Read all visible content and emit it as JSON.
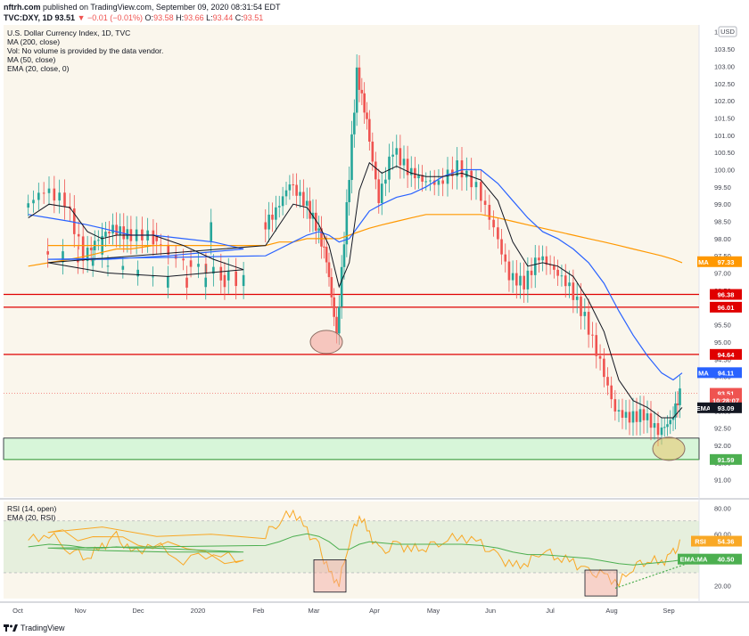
{
  "header": {
    "author": "nftrh.com",
    "published_text": "published on TradingView.com, September 09, 2020 08:31:54 EDT",
    "symbol": "TVC:DXY, 1D",
    "last": "93.51",
    "change": "▼ −0.01 (−0.01%)",
    "o_label": "O:",
    "o_value": "93.58",
    "h_label": "H:",
    "h_value": "93.66",
    "l_label": "L:",
    "l_value": "93.44",
    "c_label": "C:",
    "c_value": "93.51"
  },
  "footer": {
    "brand": "TradingView"
  },
  "colors": {
    "up": "#26a69a",
    "down": "#ef5350",
    "ma200": "#ff9800",
    "ma50": "#2962ff",
    "ema20": "#131722",
    "red_line": "#e00000",
    "green_zone": "#b9f6ca",
    "rsi": "#f9a825",
    "rsi_ema": "#4caf50",
    "circle_fill": "#e9c46a"
  },
  "chart_data": [
    {
      "type": "candlestick",
      "title": "U.S. Dollar Currency Index, 1D, TVC",
      "legend": [
        "U.S. Dollar Currency Index, 1D, TVC",
        "MA (200, close)",
        "Vol: No volume is provided by the data vendor.",
        "MA (50, close)",
        "EMA (20, close, 0)"
      ],
      "currency": "USD",
      "ylim": [
        90.5,
        104.2
      ],
      "y_ticks": [
        "104.00",
        "103.50",
        "103.00",
        "102.50",
        "102.00",
        "101.50",
        "101.00",
        "100.50",
        "100.00",
        "99.50",
        "99.00",
        "98.50",
        "98.00",
        "97.50",
        "97.00",
        "96.50",
        "96.00",
        "95.50",
        "95.00",
        "94.50",
        "94.00",
        "93.50",
        "93.00",
        "92.50",
        "92.00",
        "91.50",
        "91.00"
      ],
      "x_ticks": [
        "Oct",
        "Nov",
        "Dec",
        "2020",
        "Feb",
        "Mar",
        "Apr",
        "May",
        "Jun",
        "Jul",
        "Aug",
        "Sep"
      ],
      "horizontal_levels": [
        96.38,
        96.01,
        94.64
      ],
      "support_zone": [
        91.59,
        92.21
      ],
      "price_tags": [
        {
          "label": "MA",
          "value": "97.33",
          "color": "#ff9800"
        },
        {
          "label": "",
          "value": "96.38",
          "color": "#e00000"
        },
        {
          "label": "",
          "value": "96.01",
          "color": "#e00000"
        },
        {
          "label": "",
          "value": "94.64",
          "color": "#e00000"
        },
        {
          "label": "MA",
          "value": "94.11",
          "color": "#2962ff"
        },
        {
          "label": "",
          "value": "93.51",
          "color": "#ef5350"
        },
        {
          "label": "",
          "value": "10:28:07",
          "color": "#ef5350"
        },
        {
          "label": "EMA",
          "value": "93.09",
          "color": "#131722"
        },
        {
          "label": "",
          "value": "91.59",
          "color": "#4caf50"
        }
      ],
      "close_path": [
        [
          "Oct",
          98.9
        ],
        [
          "Oct",
          99.4
        ],
        [
          "Oct",
          99.1
        ],
        [
          "Nov",
          97.5
        ],
        [
          "Nov",
          98.0
        ],
        [
          "Nov",
          98.3
        ],
        [
          "Nov",
          98.1
        ],
        [
          "Dec",
          98.1
        ],
        [
          "Dec",
          97.4
        ],
        [
          "Dec",
          97.1
        ],
        [
          "Dec",
          96.8
        ],
        [
          "2020",
          96.7
        ],
        [
          "2020",
          97.2
        ],
        [
          "2020",
          97.5
        ],
        [
          "Feb",
          98.3
        ],
        [
          "Feb",
          98.8
        ],
        [
          "Feb",
          99.6
        ],
        [
          "Feb",
          99.1
        ],
        [
          "Mar",
          98.4
        ],
        [
          "Mar",
          97.4
        ],
        [
          "Mar",
          95.2
        ],
        [
          "Mar",
          98.9
        ],
        [
          "Mar",
          102.8
        ],
        [
          "Mar",
          101.4
        ],
        [
          "Apr",
          99.1
        ],
        [
          "Apr",
          100.6
        ],
        [
          "Apr",
          100.0
        ],
        [
          "Apr",
          99.7
        ],
        [
          "May",
          99.6
        ],
        [
          "May",
          100.1
        ],
        [
          "May",
          99.5
        ],
        [
          "Jun",
          98.3
        ],
        [
          "Jun",
          96.9
        ],
        [
          "Jun",
          96.7
        ],
        [
          "Jun",
          97.5
        ],
        [
          "Jul",
          97.1
        ],
        [
          "Jul",
          96.6
        ],
        [
          "Jul",
          95.7
        ],
        [
          "Jul",
          94.4
        ],
        [
          "Aug",
          93.0
        ],
        [
          "Aug",
          92.8
        ],
        [
          "Aug",
          92.9
        ],
        [
          "Aug",
          92.4
        ],
        [
          "Sep",
          92.7
        ],
        [
          "Sep",
          93.5
        ]
      ],
      "ema20": [
        98.6,
        99.0,
        98.9,
        98.2,
        98.0,
        98.1,
        98.1,
        98.1,
        97.8,
        97.4,
        97.1,
        96.9,
        97.0,
        97.3,
        97.8,
        98.4,
        99.0,
        98.9,
        98.4,
        97.8,
        96.6,
        97.3,
        99.4,
        100.2,
        99.9,
        100.1,
        99.9,
        99.8,
        99.8,
        99.9,
        99.7,
        99.1,
        97.9,
        97.2,
        97.3,
        97.2,
        96.9,
        96.2,
        95.3,
        93.9,
        93.3,
        93.1,
        92.8,
        92.8,
        93.1
      ],
      "ma50": [
        98.7,
        98.6,
        98.5,
        98.4,
        98.3,
        98.2,
        98.1,
        98.1,
        98.0,
        97.9,
        97.7,
        97.5,
        97.4,
        97.4,
        97.5,
        97.7,
        97.9,
        98.1,
        98.2,
        98.1,
        97.9,
        98.0,
        98.4,
        98.8,
        99.0,
        99.2,
        99.3,
        99.5,
        99.8,
        100.0,
        100.0,
        99.6,
        99.1,
        98.6,
        98.2,
        98.0,
        97.7,
        97.3,
        96.7,
        95.9,
        95.2,
        94.6,
        94.1,
        93.9,
        94.1
      ],
      "ma200": [
        97.2,
        97.3,
        97.4,
        97.5,
        97.6,
        97.7,
        97.7,
        97.8,
        97.8,
        97.8,
        97.8,
        97.8,
        97.8,
        97.8,
        97.8,
        97.9,
        97.9,
        98.0,
        98.0,
        98.0,
        98.0,
        98.1,
        98.2,
        98.3,
        98.4,
        98.5,
        98.6,
        98.7,
        98.7,
        98.7,
        98.7,
        98.6,
        98.5,
        98.4,
        98.3,
        98.2,
        98.1,
        98.0,
        97.9,
        97.8,
        97.7,
        97.6,
        97.5,
        97.4,
        97.3
      ],
      "annotations": [
        "circle at March low near 95.0",
        "circle at September low near 91.9"
      ]
    },
    {
      "type": "line",
      "title": "RSI (14, open)",
      "legend": [
        "RSI (14, open)",
        "EMA (20, RSI)"
      ],
      "ylim": [
        10,
        85
      ],
      "y_ticks": [
        "80.00",
        "60.00",
        "40.00",
        "20.00"
      ],
      "band": [
        30,
        70
      ],
      "series": [
        {
          "name": "RSI",
          "values": [
            55,
            60,
            48,
            42,
            50,
            58,
            45,
            52,
            40,
            46,
            38,
            50,
            55,
            62,
            60,
            70,
            78,
            62,
            50,
            30,
            22,
            55,
            75,
            60,
            45,
            52,
            48,
            50,
            55,
            58,
            52,
            42,
            35,
            38,
            48,
            42,
            38,
            30,
            28,
            22,
            35,
            40,
            38,
            45,
            54
          ]
        },
        {
          "name": "EMA (20, RSI)",
          "values": [
            50,
            52,
            51,
            49,
            49,
            50,
            49,
            49,
            48,
            47,
            46,
            46,
            47,
            49,
            51,
            54,
            58,
            60,
            58,
            54,
            48,
            48,
            52,
            54,
            53,
            52,
            52,
            52,
            52,
            52,
            51,
            49,
            46,
            44,
            44,
            43,
            42,
            41,
            39,
            37,
            36,
            37,
            38,
            39,
            40
          ]
        }
      ],
      "price_tags": [
        {
          "label": "RSI",
          "value": "54.36",
          "color": "#f9a825"
        },
        {
          "label": "EMA:MA",
          "value": "40.50",
          "color": "#4caf50"
        }
      ],
      "annotations": [
        "box at March RSI low",
        "box at August RSI low",
        "dotted rising trendline"
      ]
    }
  ]
}
